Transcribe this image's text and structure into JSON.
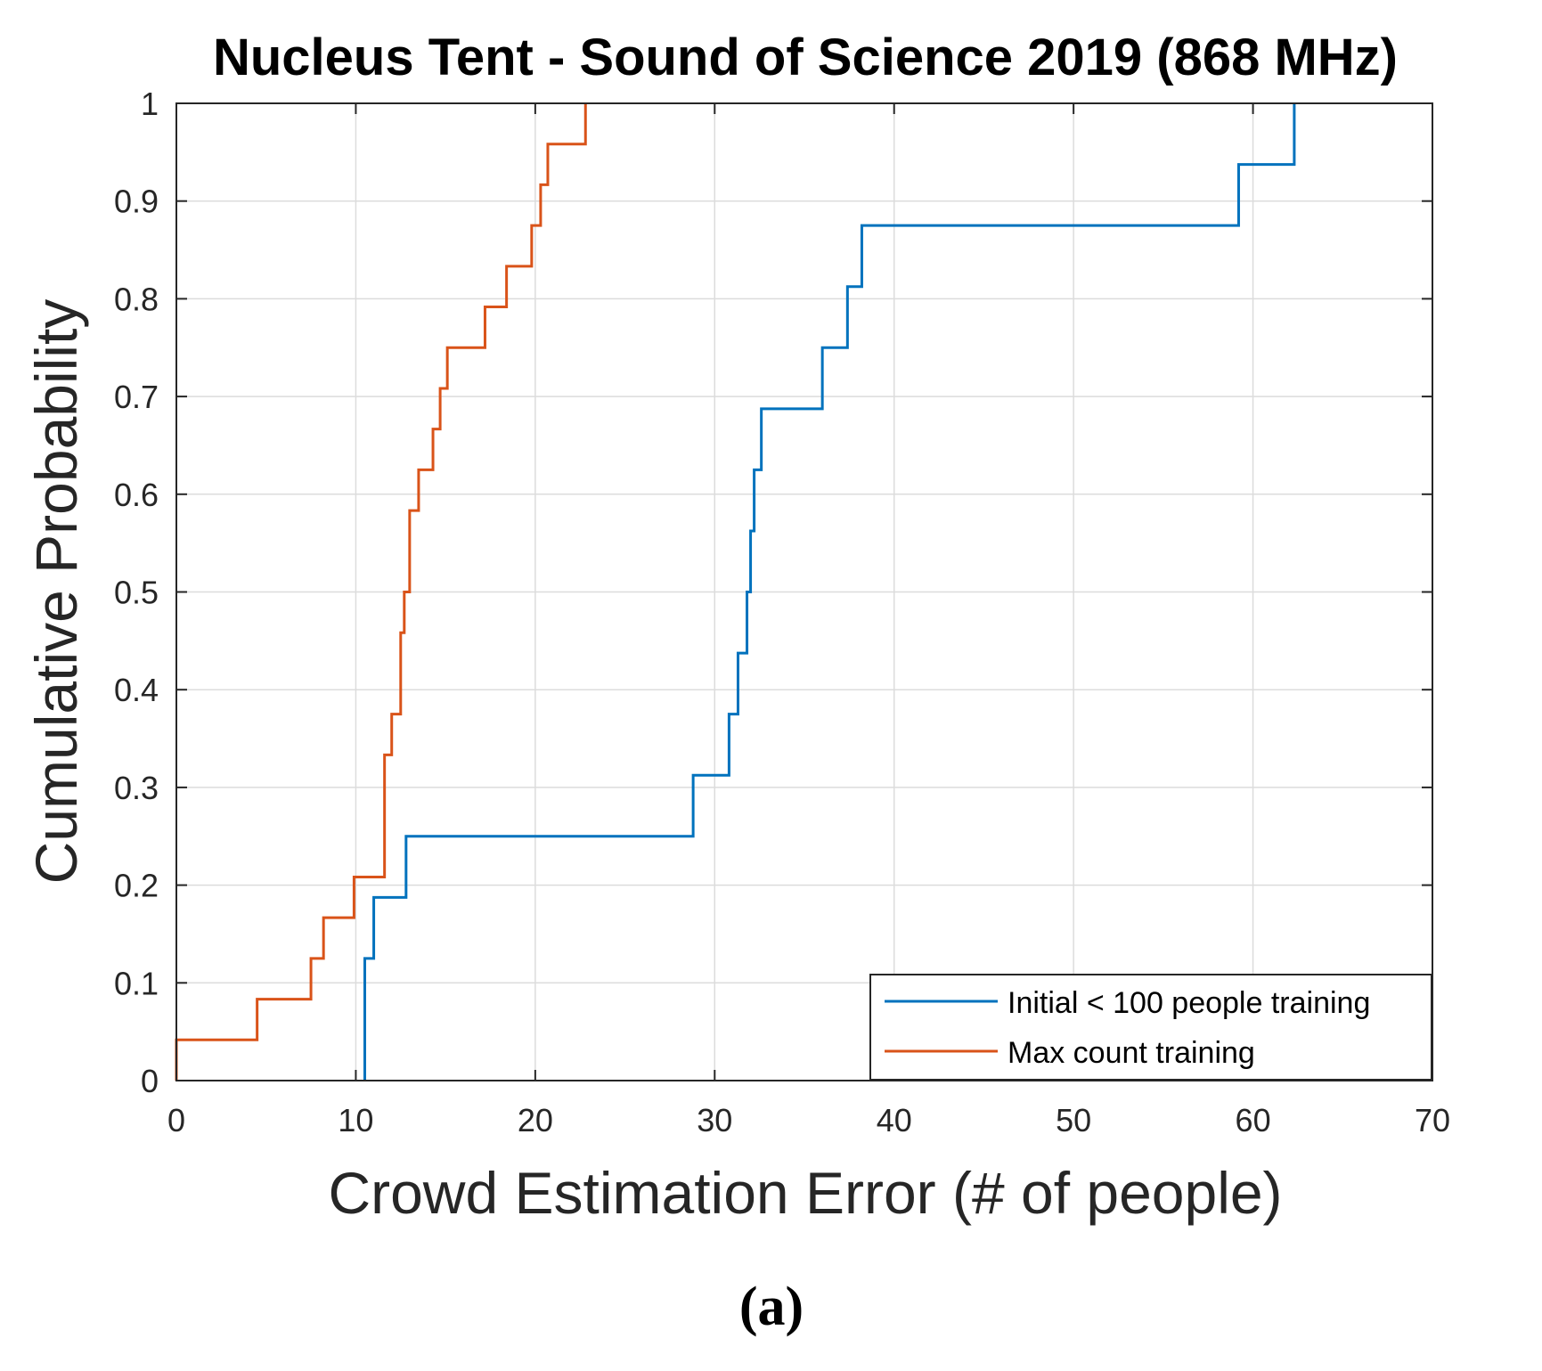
{
  "chart_data": {
    "type": "line",
    "subtype": "stairs-cdf",
    "title": "Nucleus Tent - Sound of Science 2019 (868 MHz)",
    "xlabel": "Crowd Estimation Error (# of people)",
    "ylabel": "Cumulative Probability",
    "xlim": [
      0,
      70
    ],
    "ylim": [
      0,
      1
    ],
    "xticks": [
      "0",
      "10",
      "20",
      "30",
      "40",
      "50",
      "60",
      "70"
    ],
    "yticks": [
      "0",
      "0.1",
      "0.2",
      "0.3",
      "0.4",
      "0.5",
      "0.6",
      "0.7",
      "0.8",
      "0.9",
      "1"
    ],
    "grid": true,
    "legend_position": "bottom-right",
    "series": [
      {
        "name": "Initial < 100 people training",
        "color": "#0072BD",
        "x": [
          10.5,
          10.5,
          11,
          12.8,
          28.8,
          30.8,
          31.3,
          31.8,
          32,
          32.2,
          32.6,
          36,
          37.4,
          38.2,
          59.2,
          62.3
        ],
        "y": [
          0,
          0.125,
          0.1875,
          0.25,
          0.3125,
          0.375,
          0.4375,
          0.5,
          0.5625,
          0.625,
          0.6875,
          0.75,
          0.8125,
          0.875,
          0.9375,
          1.0
        ]
      },
      {
        "name": "Max count training",
        "color": "#D95319",
        "x": [
          0,
          4.5,
          7.5,
          8.2,
          9.9,
          11.6,
          12,
          12.5,
          12.7,
          13,
          13.5,
          14.3,
          14.7,
          15.1,
          17.2,
          18.4,
          19.8,
          20.3,
          20.7,
          22.8
        ],
        "y": [
          0.0417,
          0.0833,
          0.125,
          0.1667,
          0.2083,
          0.3333,
          0.375,
          0.4583,
          0.5,
          0.5833,
          0.625,
          0.6667,
          0.7083,
          0.75,
          0.7917,
          0.8333,
          0.875,
          0.9167,
          0.9583,
          1.0
        ]
      }
    ]
  },
  "caption": "(a)"
}
